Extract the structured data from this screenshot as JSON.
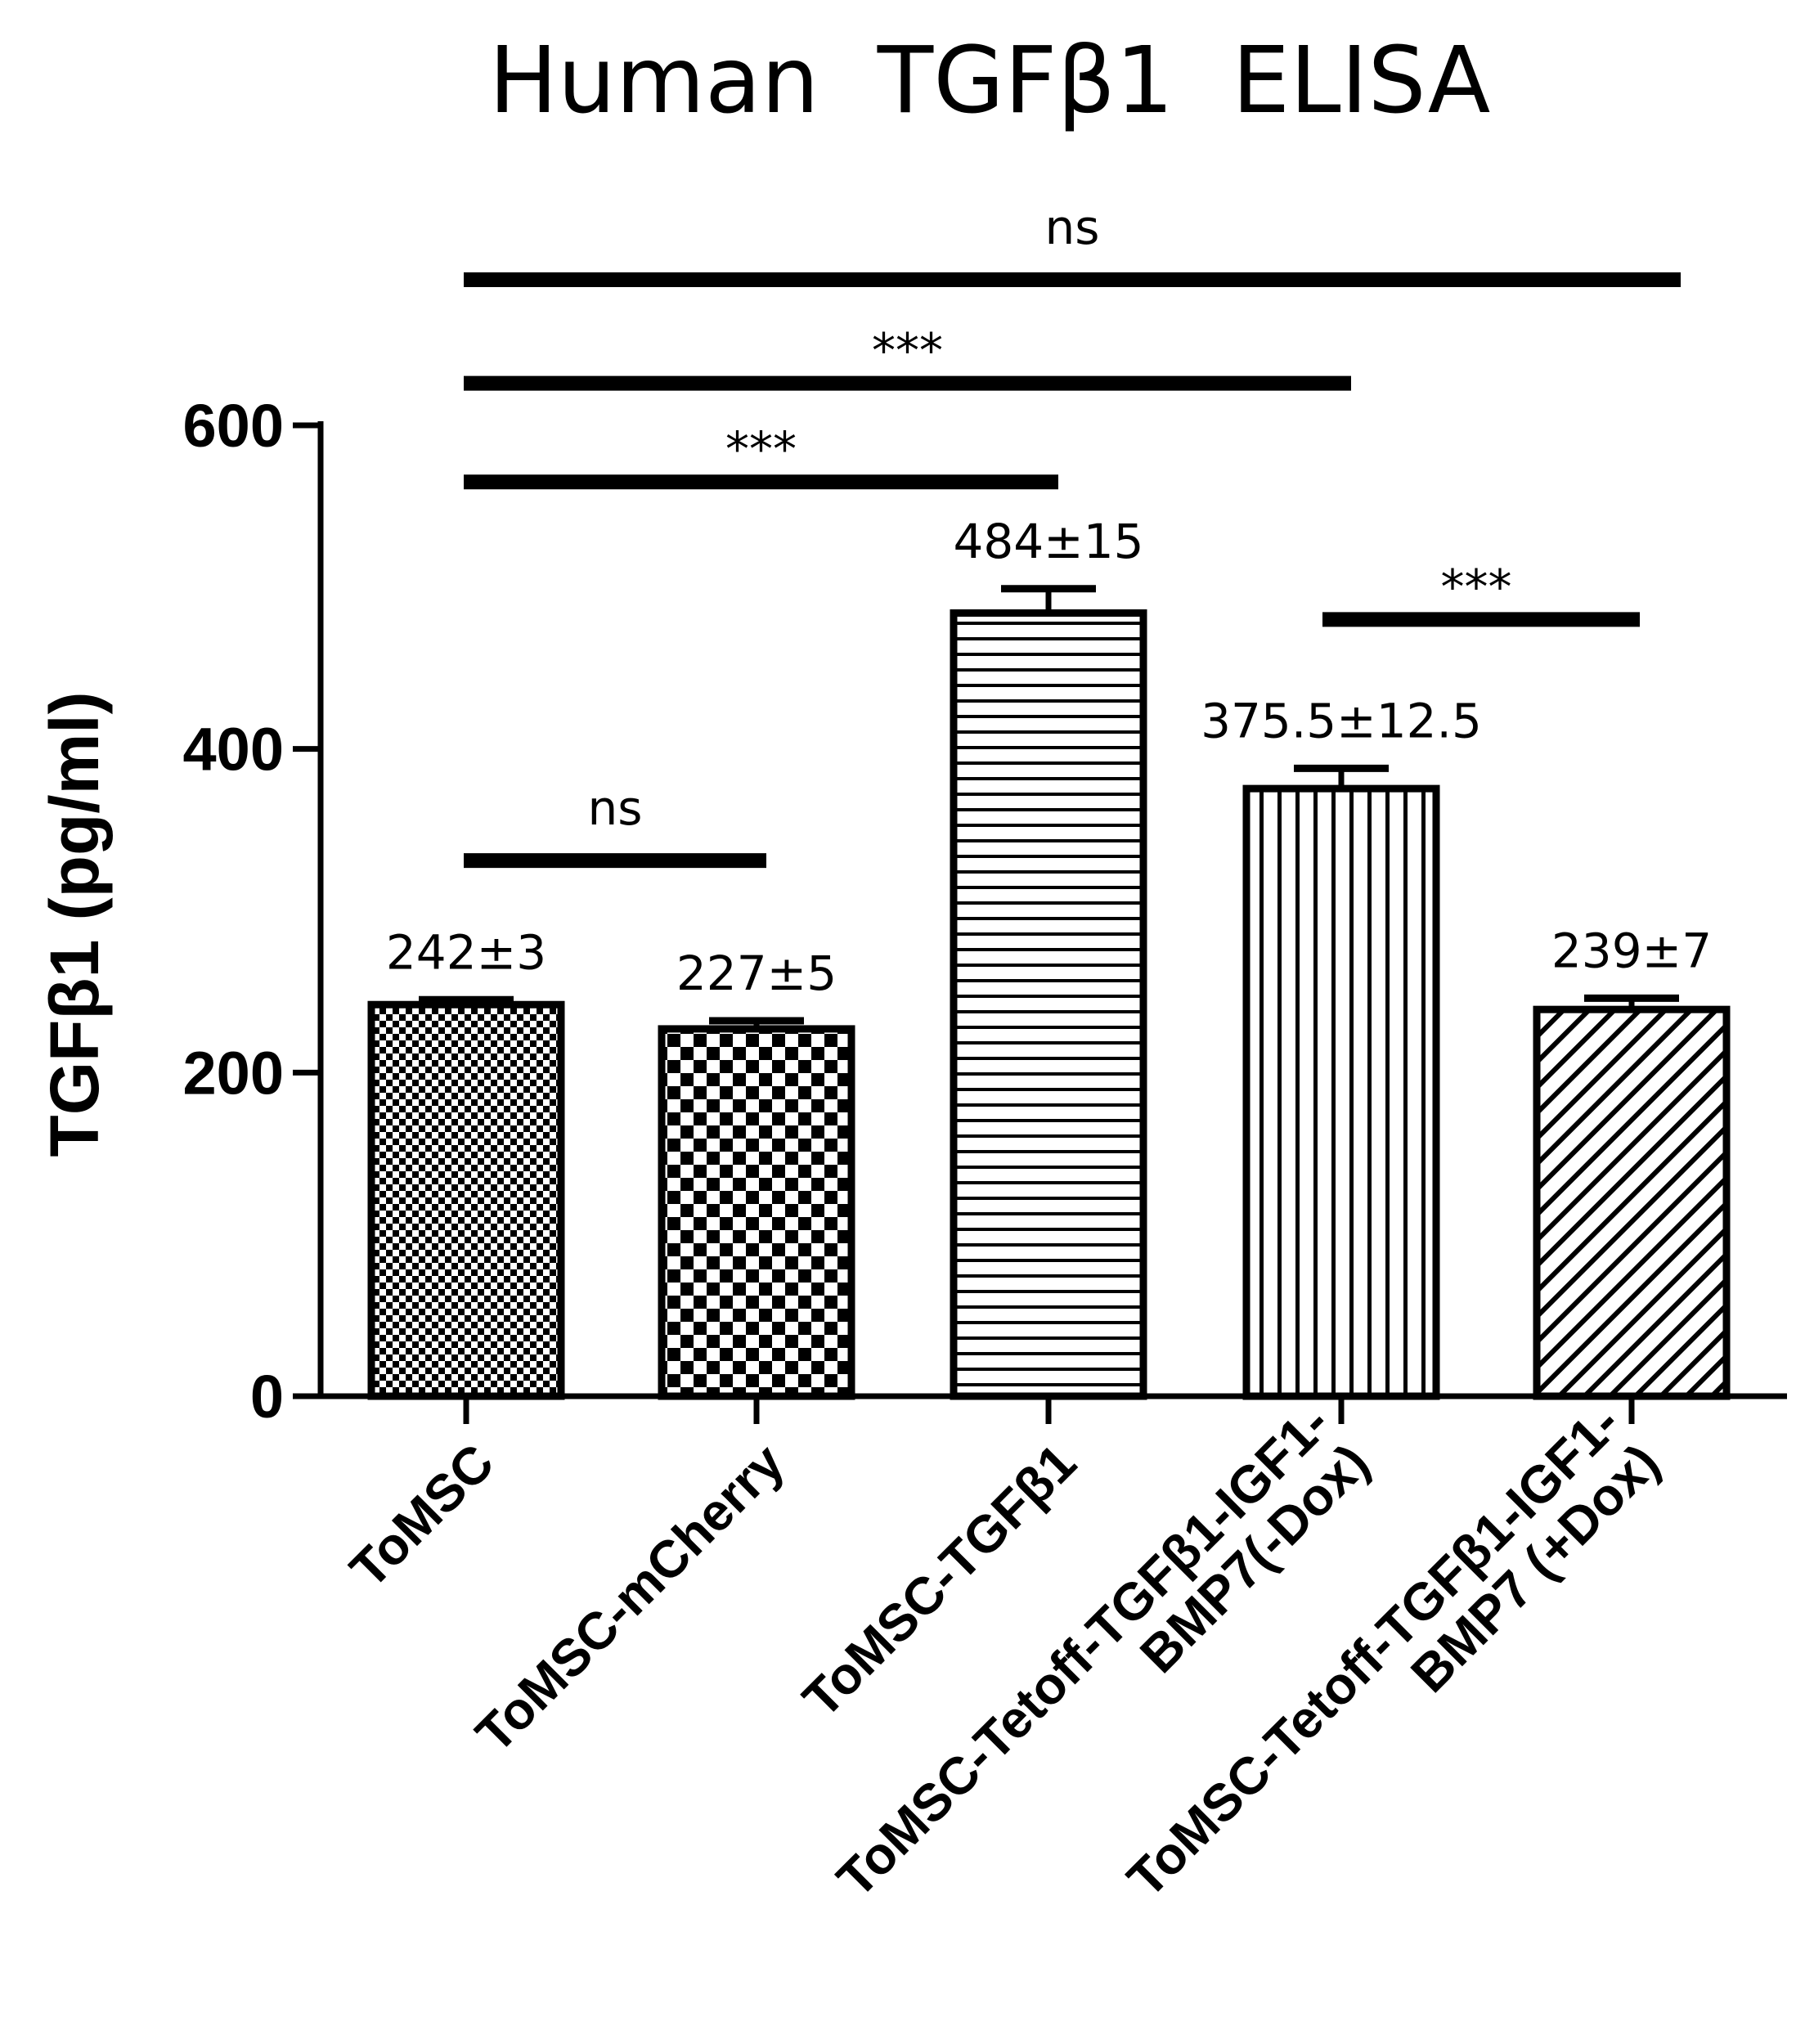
{
  "chart_data": {
    "type": "bar",
    "title": "Human  TGFβ1  ELISA",
    "ylabel": "TGFβ1  (pg/ml)",
    "xlabel": "",
    "ylim": [
      0,
      600
    ],
    "yticks": [
      0,
      200,
      400,
      600
    ],
    "grid": false,
    "legend": "none",
    "categories": [
      [
        "ToMSC"
      ],
      [
        "ToMSC-mCherry"
      ],
      [
        "ToMSC-TGFβ1"
      ],
      [
        "ToMSC-Tetoff-TGFβ1-IGF1-",
        "BMP7(-Dox)"
      ],
      [
        "ToMSC-Tetoff-TGFβ1-IGF1-",
        "BMP7  (+Dox)"
      ]
    ],
    "values": [
      242,
      227,
      484,
      375.5,
      239
    ],
    "errors": [
      3,
      5,
      15,
      12.5,
      7
    ],
    "data_labels": [
      "242±3",
      "227±5",
      "484±15",
      "375.5±12.5",
      "239±7"
    ],
    "patterns": [
      "fine-checker",
      "checker",
      "horizontal-lines",
      "vertical-lines",
      "diagonal-lines"
    ],
    "significance": [
      {
        "from": 0,
        "to": 4,
        "label": "ns",
        "y": 690
      },
      {
        "from": 0,
        "to": 3,
        "label": "***",
        "y": 626
      },
      {
        "from": 0,
        "to": 2,
        "label": "***",
        "y": 565
      },
      {
        "from": 3,
        "to": 4,
        "label": "***",
        "y": 480
      },
      {
        "from": 0,
        "to": 1,
        "label": "ns",
        "y": 331
      }
    ]
  }
}
